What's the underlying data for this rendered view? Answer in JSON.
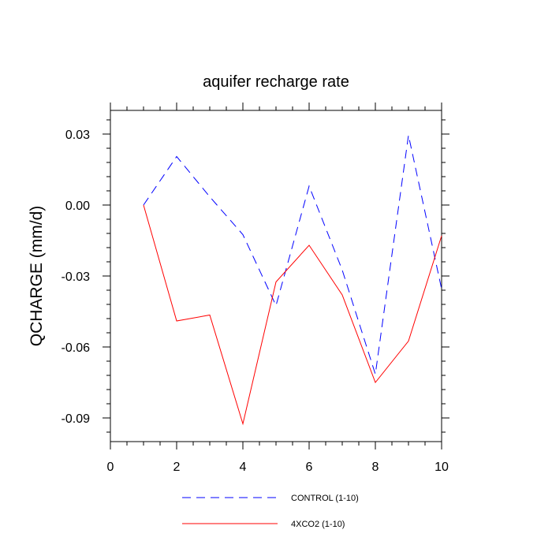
{
  "chart_data": {
    "type": "line",
    "title": "aquifer recharge rate",
    "xlabel": "",
    "ylabel": "QCHARGE  (mm/d)",
    "xlim": [
      0,
      10
    ],
    "ylim": [
      -0.1,
      0.04
    ],
    "xticks": [
      0,
      2,
      4,
      6,
      8,
      10
    ],
    "xtick_labels": [
      "0",
      "2",
      "4",
      "6",
      "8",
      "10"
    ],
    "yticks": [
      0.03,
      0.0,
      -0.03,
      -0.06,
      -0.09
    ],
    "ytick_labels": [
      "0.03",
      "0.00",
      "-0.03",
      "-0.06",
      "-0.09"
    ],
    "grid": false,
    "legend_position": "bottom",
    "series": [
      {
        "name": "CONTROL (1-10)",
        "color": "#0000ff",
        "style": "dashed",
        "x": [
          1,
          2,
          3,
          4,
          5,
          6,
          7,
          8,
          9,
          10
        ],
        "values": [
          0.0,
          0.0205,
          0.0035,
          -0.0125,
          -0.0425,
          0.008,
          -0.0275,
          -0.0715,
          0.0295,
          -0.0355
        ]
      },
      {
        "name": "4XCO2 (1-10)",
        "color": "#ff0000",
        "style": "solid",
        "x": [
          1,
          2,
          3,
          4,
          5,
          6,
          7,
          8,
          9,
          10
        ],
        "values": [
          0.0,
          -0.049,
          -0.0465,
          -0.0925,
          -0.0325,
          -0.017,
          -0.038,
          -0.075,
          -0.0575,
          -0.013
        ]
      }
    ]
  }
}
